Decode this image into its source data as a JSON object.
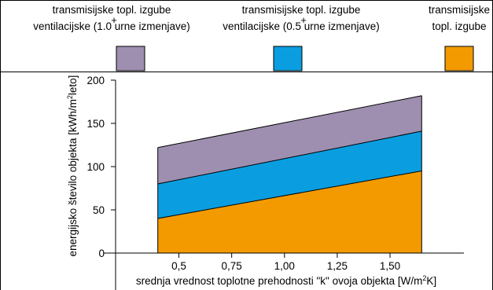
{
  "chart_data": {
    "type": "area",
    "x": [
      0.4,
      1.65
    ],
    "series": [
      {
        "name": "transmisijske topl. izgube",
        "values": [
          40,
          95
        ],
        "color": "#f29a00"
      },
      {
        "name": "transmisijske topl. izgube + ventilacijske (0.5 urne izmenjave)",
        "values": [
          80,
          141
        ],
        "color": "#0a9ee0"
      },
      {
        "name": "transmisijske topl. izgube + ventilacijske (1.0 urne izmenjave)",
        "values": [
          122,
          182
        ],
        "color": "#9e8fb0"
      }
    ],
    "xlim": [
      0.2,
      1.85
    ],
    "ylim": [
      0,
      200
    ],
    "xticks": [
      0.5,
      0.75,
      1.0,
      1.25,
      1.5
    ],
    "xtick_labels": [
      "0,5",
      "0,75",
      "1,00",
      "1,25",
      "1,50"
    ],
    "yticks": [
      0,
      50,
      100,
      150,
      200
    ],
    "ytick_labels": [
      "0",
      "50",
      "100",
      "150",
      "200"
    ],
    "grid": false
  },
  "legend": [
    {
      "line1": "transmisijske topl. izgube",
      "plus": "+",
      "line2": "ventilacijske (1.0 urne izmenjave)",
      "color": "#9e8fb0"
    },
    {
      "line1": "transmisijske topl. izgube",
      "plus": "+",
      "line2": "ventilacijske (0.5 urne izmenjave)",
      "color": "#0a9ee0"
    },
    {
      "line1": "transmisijske",
      "plus": "",
      "line2": "topl. izgube",
      "color": "#f29a00"
    }
  ],
  "axes": {
    "ylabel_main": "energijsko število objekta [kWh/m",
    "ylabel_sup": "2",
    "ylabel_end": "leto]",
    "xlabel_main": "srednja vrednost toplotne prehodnosti \"k\" ovoja objekta [W/m",
    "xlabel_sup": "2",
    "xlabel_end": "K]"
  }
}
